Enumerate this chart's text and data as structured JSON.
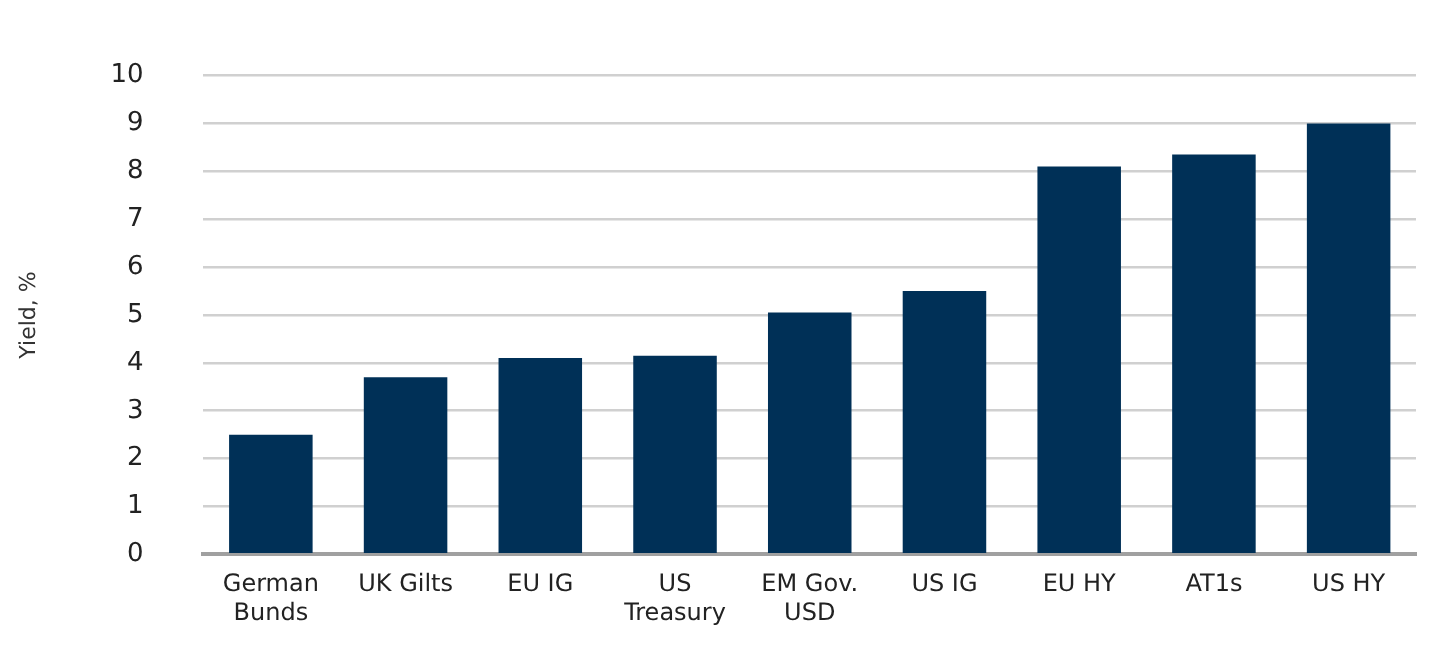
{
  "chart_data": {
    "type": "bar",
    "ylabel": "Yield, %",
    "categories": [
      "German Bunds",
      "UK Gilts",
      "EU IG",
      "US Treasury",
      "EM Gov. USD",
      "US IG",
      "EU HY",
      "AT1s",
      "US HY"
    ],
    "values": [
      2.5,
      3.7,
      4.1,
      4.15,
      5.05,
      5.5,
      8.1,
      8.35,
      9.0
    ],
    "color": "#003057",
    "ylim": [
      0,
      10
    ],
    "yticks": [
      0,
      1,
      2,
      3,
      4,
      5,
      6,
      7,
      8,
      9,
      10
    ],
    "grid": "y",
    "legend": false
  }
}
